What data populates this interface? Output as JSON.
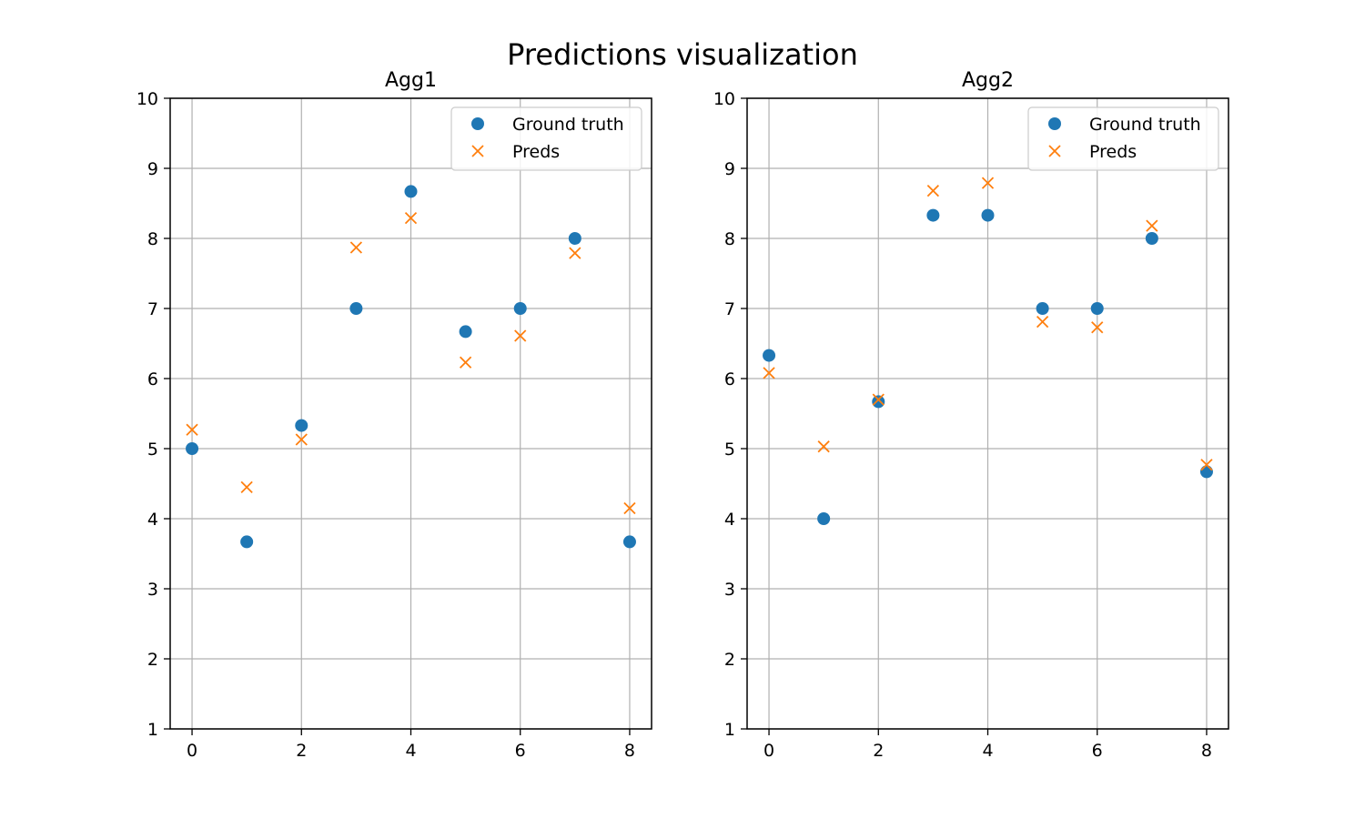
{
  "figure": {
    "title": "Predictions visualization"
  },
  "chart_data": [
    {
      "type": "scatter",
      "title": "Agg1",
      "xlabel": "",
      "ylabel": "",
      "xlim": [
        -0.4,
        8.4
      ],
      "ylim": [
        1,
        10
      ],
      "xticks": [
        0,
        2,
        4,
        6,
        8
      ],
      "yticks": [
        1,
        2,
        3,
        4,
        5,
        6,
        7,
        8,
        9,
        10
      ],
      "grid": true,
      "legend": "top-right",
      "series": [
        {
          "name": "Ground truth",
          "marker": "circle",
          "color": "#1f77b4",
          "x": [
            0,
            1,
            2,
            3,
            4,
            5,
            6,
            7,
            8
          ],
          "y": [
            5.0,
            3.67,
            5.33,
            7.0,
            8.67,
            6.67,
            7.0,
            8.0,
            3.67
          ]
        },
        {
          "name": "Preds",
          "marker": "x",
          "color": "#ff7f0e",
          "x": [
            0,
            1,
            2,
            3,
            4,
            5,
            6,
            7,
            8
          ],
          "y": [
            5.27,
            4.45,
            5.13,
            7.87,
            8.29,
            6.23,
            6.61,
            7.79,
            4.15
          ]
        }
      ]
    },
    {
      "type": "scatter",
      "title": "Agg2",
      "xlabel": "",
      "ylabel": "",
      "xlim": [
        -0.4,
        8.4
      ],
      "ylim": [
        1,
        10
      ],
      "xticks": [
        0,
        2,
        4,
        6,
        8
      ],
      "yticks": [
        1,
        2,
        3,
        4,
        5,
        6,
        7,
        8,
        9,
        10
      ],
      "grid": true,
      "legend": "top-right",
      "series": [
        {
          "name": "Ground truth",
          "marker": "circle",
          "color": "#1f77b4",
          "x": [
            0,
            1,
            2,
            3,
            4,
            5,
            6,
            7,
            8
          ],
          "y": [
            6.33,
            4.0,
            5.67,
            8.33,
            8.33,
            7.0,
            7.0,
            8.0,
            4.67
          ]
        },
        {
          "name": "Preds",
          "marker": "x",
          "color": "#ff7f0e",
          "x": [
            0,
            1,
            2,
            3,
            4,
            5,
            6,
            7,
            8
          ],
          "y": [
            6.08,
            5.03,
            5.7,
            8.68,
            8.79,
            6.81,
            6.73,
            8.18,
            4.77
          ]
        }
      ]
    }
  ]
}
